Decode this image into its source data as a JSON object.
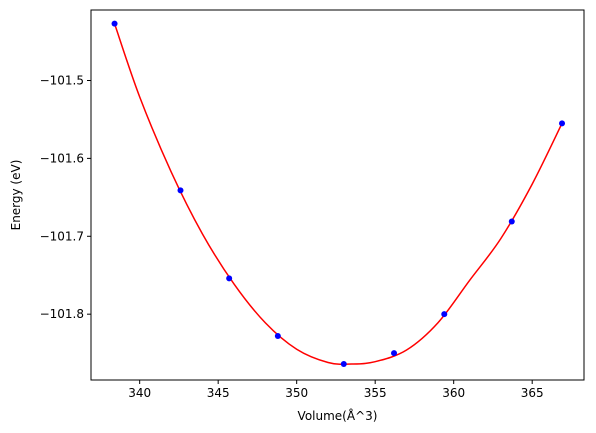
{
  "chart_data": {
    "type": "scatter",
    "title": "",
    "xlabel": "Volume(Å^3)",
    "ylabel": "Energy (eV)",
    "xlim": [
      336.9,
      368.3
    ],
    "ylim": [
      -101.8845,
      -101.4095
    ],
    "xticks": [
      340,
      345,
      350,
      355,
      360,
      365
    ],
    "xtick_labels": [
      "340",
      "345",
      "350",
      "355",
      "360",
      "365"
    ],
    "yticks": [
      -101.5,
      -101.6,
      -101.7,
      -101.8
    ],
    "ytick_labels": [
      "−101.5",
      "−101.6",
      "−101.7",
      "−101.8"
    ],
    "grid": false,
    "legend": "none",
    "series": [
      {
        "type": "scatter",
        "color": "#0000ff",
        "marker": "circle",
        "x": [
          338.4,
          342.6,
          345.7,
          348.8,
          353.0,
          356.2,
          359.4,
          363.7,
          366.9
        ],
        "y": [
          -101.427,
          -101.641,
          -101.754,
          -101.828,
          -101.864,
          -101.85,
          -101.8,
          -101.681,
          -101.555
        ]
      },
      {
        "type": "line",
        "color": "#ff0000",
        "x": [
          338.4,
          340.0,
          342.0,
          344.0,
          346.0,
          348.0,
          350.0,
          352.0,
          353.5,
          355.0,
          357.0,
          359.0,
          361.0,
          363.0,
          365.0,
          366.9
        ],
        "y": [
          -101.427,
          -101.521,
          -101.617,
          -101.697,
          -101.761,
          -101.811,
          -101.845,
          -101.862,
          -101.864,
          -101.861,
          -101.846,
          -101.811,
          -101.757,
          -101.703,
          -101.633,
          -101.555
        ]
      }
    ]
  }
}
